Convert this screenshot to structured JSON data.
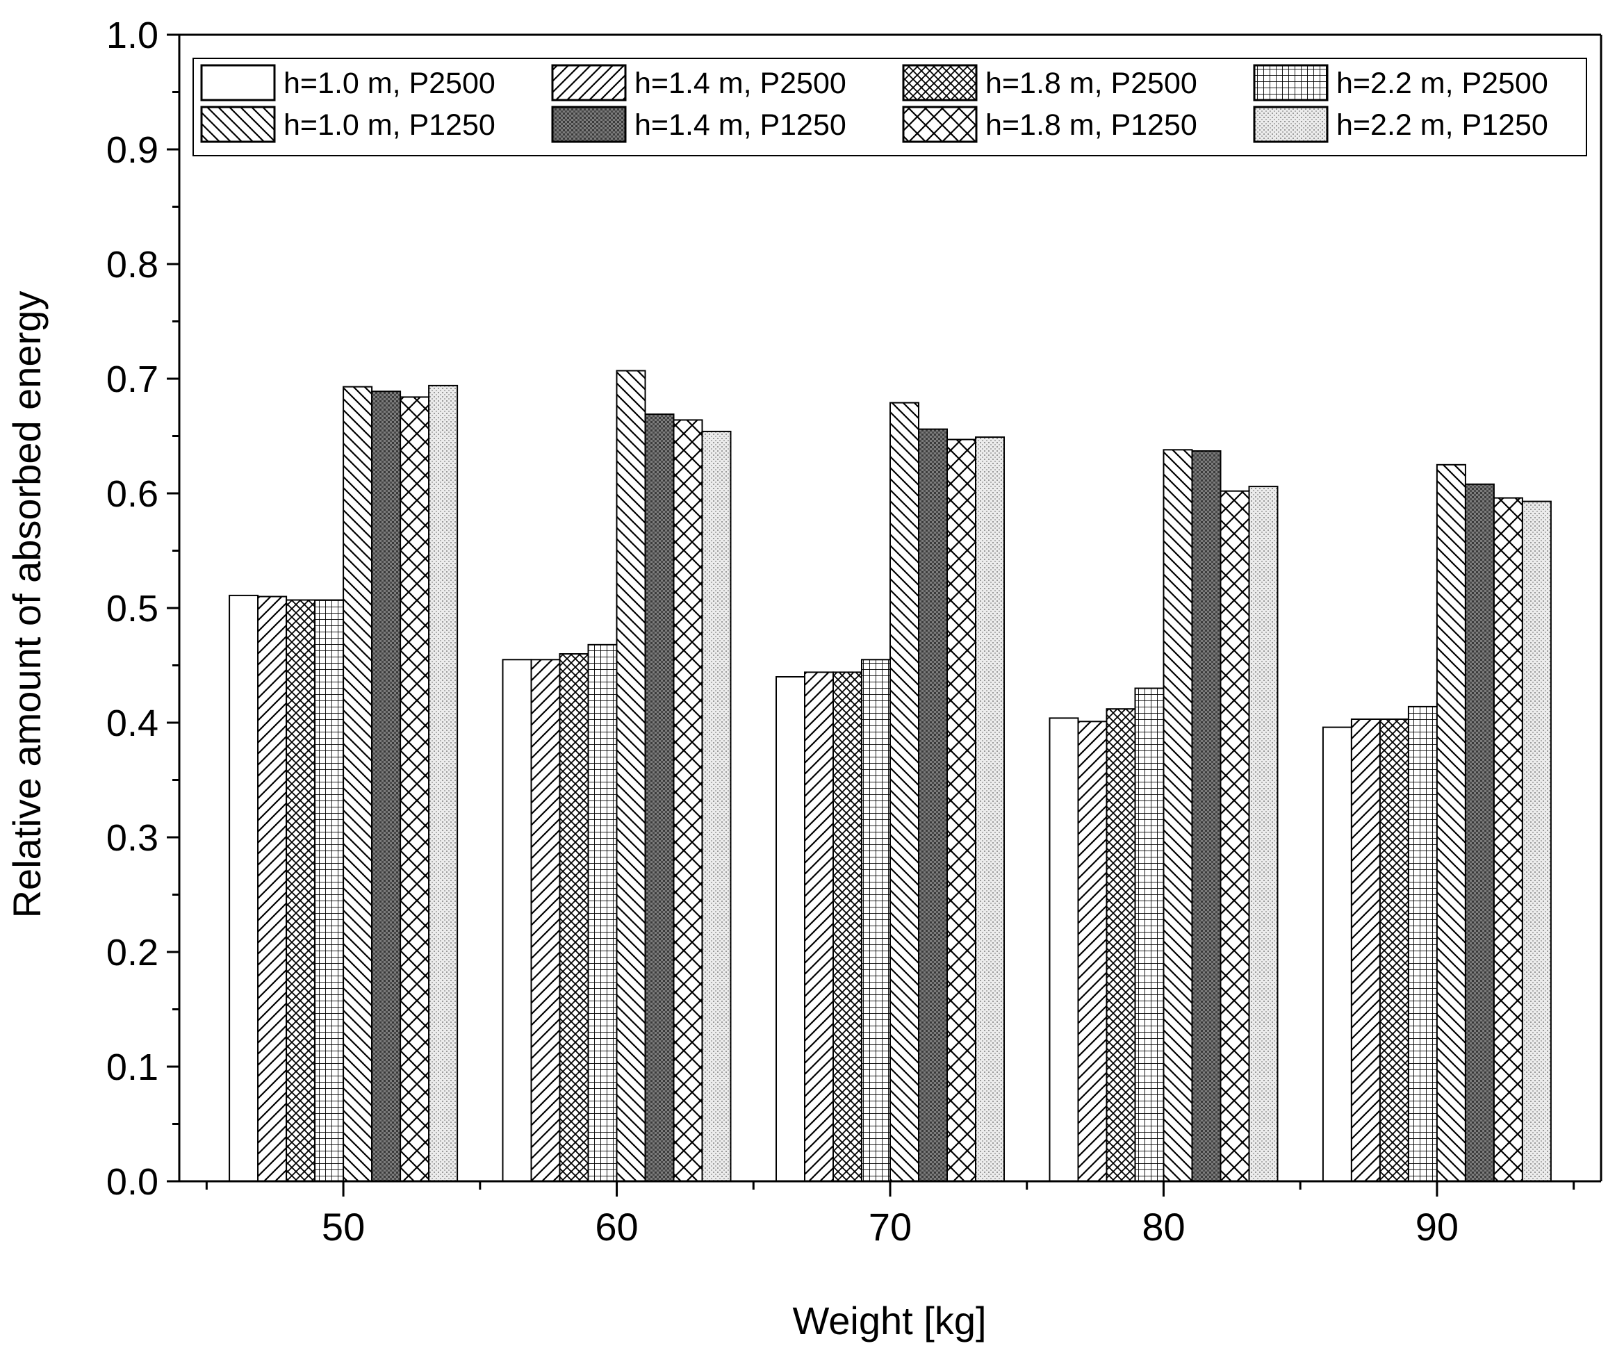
{
  "chart_data": {
    "type": "bar",
    "title": "",
    "xlabel": "Weight [kg]",
    "ylabel": "Relative amount of absorbed energy",
    "ylim": [
      0.0,
      1.0
    ],
    "yticks": [
      "0.0",
      "0.1",
      "0.2",
      "0.3",
      "0.4",
      "0.5",
      "0.6",
      "0.7",
      "0.8",
      "0.9",
      "1.0"
    ],
    "categories": [
      "50",
      "60",
      "70",
      "80",
      "90"
    ],
    "legend_position": "top",
    "series": [
      {
        "name": "h=1.0 m, P2500",
        "pattern": "blank",
        "values": [
          0.511,
          0.455,
          0.44,
          0.404,
          0.396
        ]
      },
      {
        "name": "h=1.4 m, P2500",
        "pattern": "diag-up",
        "values": [
          0.51,
          0.455,
          0.444,
          0.401,
          0.403
        ]
      },
      {
        "name": "h=1.8 m, P2500",
        "pattern": "crosshatch-fine",
        "values": [
          0.507,
          0.46,
          0.444,
          0.412,
          0.403
        ]
      },
      {
        "name": "h=2.2 m, P2500",
        "pattern": "grid",
        "values": [
          0.507,
          0.468,
          0.455,
          0.43,
          0.414
        ]
      },
      {
        "name": "h=1.0 m, P1250",
        "pattern": "diag-down",
        "values": [
          0.693,
          0.707,
          0.679,
          0.638,
          0.625
        ]
      },
      {
        "name": "h=1.4 m, P1250",
        "pattern": "dense-dots",
        "values": [
          0.689,
          0.669,
          0.656,
          0.637,
          0.608
        ]
      },
      {
        "name": "h=1.8 m, P1250",
        "pattern": "crosshatch-wide",
        "values": [
          0.684,
          0.664,
          0.647,
          0.602,
          0.596
        ]
      },
      {
        "name": "h=2.2 m, P1250",
        "pattern": "light-dots",
        "values": [
          0.694,
          0.654,
          0.649,
          0.606,
          0.593
        ]
      }
    ]
  }
}
